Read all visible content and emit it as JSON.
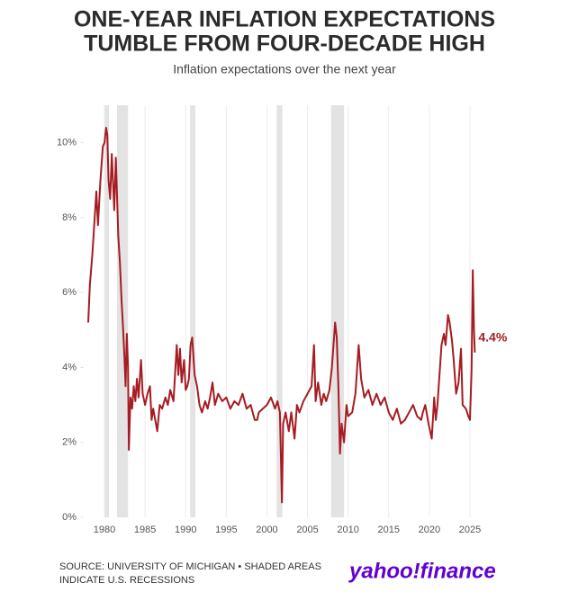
{
  "chart_data": {
    "type": "line",
    "title": [
      "ONE-YEAR INFLATION EXPECTATIONS",
      "TUMBLE FROM FOUR-DECADE HIGH"
    ],
    "subtitle": "Inflation expectations over the next year",
    "source": [
      "SOURCE: UNIVERSITY OF MICHIGAN • SHADED AREAS",
      "INDICATE U.S. RECESSIONS"
    ],
    "logo": "yahoo!finance",
    "color": "#a51c22",
    "grid": true,
    "xlim": [
      1977.5,
      2026.5
    ],
    "ylim": [
      0,
      11
    ],
    "xticks": [
      1980,
      1985,
      1990,
      1995,
      2000,
      2005,
      2010,
      2015,
      2020,
      2025
    ],
    "yticks": [
      {
        "value": 0,
        "label": "0%"
      },
      {
        "value": 2,
        "label": "2%"
      },
      {
        "value": 4,
        "label": "4%"
      },
      {
        "value": 6,
        "label": "6%"
      },
      {
        "value": 8,
        "label": "8%"
      },
      {
        "value": 10,
        "label": "10%"
      }
    ],
    "recessions": [
      [
        1980.0,
        1980.55
      ],
      [
        1981.55,
        1982.9
      ],
      [
        1990.55,
        1991.2
      ],
      [
        2001.2,
        2001.9
      ],
      [
        2007.9,
        2009.5
      ]
    ],
    "annotation": {
      "text": "4.4%",
      "x": 2025.6,
      "y": 4.4
    },
    "x": [
      1978.0,
      1978.2,
      1978.5,
      1979.0,
      1979.2,
      1979.5,
      1979.8,
      1980.0,
      1980.2,
      1980.35,
      1980.5,
      1980.7,
      1980.9,
      1981.2,
      1981.4,
      1981.7,
      1981.9,
      1982.1,
      1982.3,
      1982.45,
      1982.6,
      1982.75,
      1982.9,
      1983.0,
      1983.2,
      1983.4,
      1983.6,
      1983.8,
      1984.0,
      1984.2,
      1984.5,
      1984.7,
      1985.0,
      1985.3,
      1985.6,
      1985.8,
      1986.0,
      1986.5,
      1986.8,
      1987.1,
      1987.5,
      1987.8,
      1988.1,
      1988.5,
      1988.9,
      1989.1,
      1989.3,
      1989.5,
      1989.8,
      1990.0,
      1990.2,
      1990.4,
      1990.6,
      1990.8,
      1991.1,
      1991.4,
      1991.7,
      1992.0,
      1992.4,
      1992.7,
      1993.0,
      1993.3,
      1993.6,
      1994.0,
      1994.5,
      1995.0,
      1995.5,
      1996.0,
      1996.5,
      1997.0,
      1997.5,
      1998.0,
      1998.5,
      1998.8,
      1999.0,
      1999.5,
      2000.0,
      2000.5,
      2001.0,
      2001.3,
      2001.6,
      2001.85,
      2002.0,
      2002.3,
      2002.7,
      2003.0,
      2003.4,
      2003.7,
      2004.0,
      2004.5,
      2005.0,
      2005.5,
      2005.8,
      2006.0,
      2006.3,
      2006.7,
      2007.0,
      2007.3,
      2007.7,
      2008.0,
      2008.4,
      2008.6,
      2008.8,
      2009.0,
      2009.2,
      2009.5,
      2009.8,
      2010.0,
      2010.5,
      2010.9,
      2011.3,
      2011.6,
      2012.0,
      2012.5,
      2013.0,
      2013.5,
      2014.0,
      2014.5,
      2015.0,
      2015.5,
      2016.0,
      2016.5,
      2017.0,
      2017.5,
      2018.0,
      2018.5,
      2019.0,
      2019.2,
      2019.5,
      2019.9,
      2020.3,
      2020.6,
      2020.8,
      2021.0,
      2021.5,
      2021.8,
      2022.0,
      2022.3,
      2022.5,
      2022.8,
      2023.0,
      2023.3,
      2023.6,
      2023.9,
      2024.1,
      2024.5,
      2024.8,
      2025.0,
      2025.2,
      2025.35,
      2025.5,
      2025.6
    ],
    "values": [
      5.2,
      6.2,
      7.0,
      8.7,
      7.8,
      9.0,
      9.9,
      10.0,
      10.4,
      10.2,
      9.0,
      8.5,
      9.7,
      8.2,
      9.6,
      7.5,
      6.8,
      5.8,
      5.0,
      4.3,
      3.5,
      4.9,
      4.0,
      1.8,
      3.2,
      2.9,
      3.5,
      3.1,
      3.7,
      3.2,
      4.2,
      3.3,
      3.0,
      3.3,
      3.5,
      2.6,
      2.9,
      2.3,
      3.0,
      2.9,
      3.2,
      3.0,
      3.4,
      3.1,
      4.6,
      3.8,
      4.5,
      3.6,
      4.2,
      3.4,
      3.5,
      3.7,
      4.6,
      4.8,
      3.8,
      3.5,
      3.0,
      2.8,
      3.1,
      2.9,
      3.2,
      3.6,
      3.0,
      3.3,
      3.1,
      3.2,
      2.9,
      3.1,
      3.0,
      3.3,
      2.9,
      3.0,
      2.6,
      2.6,
      2.8,
      2.9,
      3.0,
      3.2,
      2.9,
      3.1,
      2.8,
      0.4,
      2.5,
      2.8,
      2.3,
      2.8,
      2.1,
      3.0,
      2.8,
      3.1,
      3.3,
      3.5,
      4.6,
      3.1,
      3.6,
      3.0,
      3.3,
      3.1,
      3.4,
      4.0,
      5.2,
      4.8,
      3.5,
      1.7,
      2.5,
      2.0,
      3.0,
      2.7,
      2.8,
      3.3,
      4.6,
      3.7,
      3.2,
      3.4,
      3.0,
      3.3,
      3.0,
      3.2,
      2.8,
      2.6,
      2.9,
      2.5,
      2.6,
      2.8,
      3.0,
      2.7,
      2.6,
      2.8,
      3.0,
      2.5,
      2.1,
      3.2,
      2.6,
      3.0,
      4.6,
      4.9,
      4.6,
      5.4,
      5.2,
      4.7,
      4.2,
      3.3,
      3.6,
      4.5,
      3.0,
      2.9,
      2.7,
      2.6,
      3.9,
      6.6,
      5.0,
      4.4
    ]
  }
}
